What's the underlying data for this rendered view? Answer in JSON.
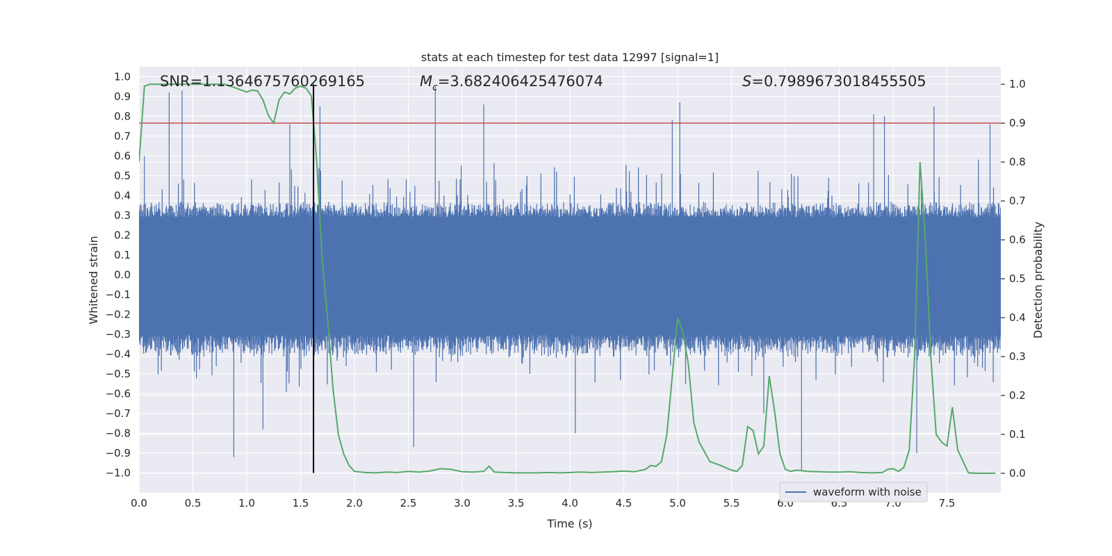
{
  "chart_data": {
    "type": "line",
    "title": "stats at each timestep for test data 12997 [signal=1]",
    "xlabel": "Time (s)",
    "ylabel": "Whitened strain",
    "y2label": "Detection probability",
    "xlim": [
      0.0,
      8.0
    ],
    "ylim": [
      -1.1,
      1.05
    ],
    "y2lim": [
      -0.05,
      1.045
    ],
    "xticks": [
      0.0,
      0.5,
      1.0,
      1.5,
      2.0,
      2.5,
      3.0,
      3.5,
      4.0,
      4.5,
      5.0,
      5.5,
      6.0,
      6.5,
      7.0,
      7.5
    ],
    "xtick_labels": [
      "0.0",
      "0.5",
      "1.0",
      "1.5",
      "2.0",
      "2.5",
      "3.0",
      "3.5",
      "4.0",
      "4.5",
      "5.0",
      "5.5",
      "6.0",
      "6.5",
      "7.0",
      "7.5"
    ],
    "yticks": [
      1.0,
      0.9,
      0.8,
      0.7,
      0.6,
      0.5,
      0.4,
      0.3,
      0.2,
      0.1,
      0.0,
      -0.1,
      -0.2,
      -0.3,
      -0.4,
      -0.5,
      -0.6,
      -0.7,
      -0.8,
      -0.9,
      -1.0
    ],
    "ytick_labels": [
      "1.0",
      "0.9",
      "0.8",
      "0.7",
      "0.6",
      "0.5",
      "0.4",
      "0.3",
      "0.2",
      "0.1",
      "0.0",
      "−0.1",
      "−0.2",
      "−0.3",
      "−0.4",
      "−0.5",
      "−0.6",
      "−0.7",
      "−0.8",
      "−0.9",
      "−1.0"
    ],
    "y2ticks": [
      1.0,
      0.9,
      0.8,
      0.7,
      0.6,
      0.5,
      0.4,
      0.3,
      0.2,
      0.1,
      0.0
    ],
    "y2tick_labels": [
      "1.0",
      "0.9",
      "0.8",
      "0.7",
      "0.6",
      "0.5",
      "0.4",
      "0.3",
      "0.2",
      "0.1",
      "0.0"
    ],
    "annotations": {
      "snr": "SNR=1.1364675760269165",
      "mc_symbol": "M",
      "mc_sub": "c",
      "mc_value": "=3.682406425476074",
      "s_symbol": "S",
      "s_value": "=0.7989673018455505"
    },
    "threshold_y2": 0.9,
    "marker_time": 1.62,
    "legend": {
      "label": "waveform with noise",
      "location": "lower right"
    },
    "series": [
      {
        "name": "waveform with noise",
        "axis": "left",
        "color": "#4c72b0",
        "description": "dense noisy strain, roughly uniform band from -0.42 to 0.37 with spikes",
        "band_low": -0.42,
        "band_high": 0.37,
        "spikes": [
          [
            0.05,
            0.6
          ],
          [
            0.28,
            0.92
          ],
          [
            0.4,
            0.93
          ],
          [
            0.88,
            -0.92
          ],
          [
            1.15,
            -0.78
          ],
          [
            1.4,
            0.76
          ],
          [
            1.68,
            0.85
          ],
          [
            2.55,
            -0.87
          ],
          [
            2.75,
            0.95
          ],
          [
            3.2,
            0.86
          ],
          [
            4.05,
            -0.8
          ],
          [
            4.95,
            0.78
          ],
          [
            5.02,
            0.87
          ],
          [
            5.8,
            -0.7
          ],
          [
            6.15,
            -0.99
          ],
          [
            6.82,
            0.81
          ],
          [
            6.92,
            0.8
          ],
          [
            7.22,
            -0.9
          ],
          [
            7.38,
            0.85
          ],
          [
            7.9,
            0.76
          ]
        ]
      },
      {
        "name": "detection probability",
        "axis": "right",
        "color": "#55a868",
        "x": [
          0.0,
          0.05,
          0.1,
          0.2,
          0.3,
          0.4,
          0.5,
          0.6,
          0.7,
          0.8,
          0.9,
          1.0,
          1.05,
          1.1,
          1.15,
          1.2,
          1.25,
          1.3,
          1.35,
          1.4,
          1.45,
          1.5,
          1.55,
          1.6,
          1.65,
          1.7,
          1.75,
          1.8,
          1.85,
          1.9,
          1.95,
          2.0,
          2.1,
          2.2,
          2.3,
          2.4,
          2.5,
          2.6,
          2.7,
          2.8,
          2.9,
          3.0,
          3.1,
          3.2,
          3.25,
          3.3,
          3.4,
          3.5,
          3.6,
          3.7,
          3.8,
          3.9,
          4.0,
          4.1,
          4.2,
          4.3,
          4.4,
          4.5,
          4.6,
          4.7,
          4.75,
          4.8,
          4.85,
          4.9,
          4.95,
          5.0,
          5.05,
          5.1,
          5.15,
          5.2,
          5.3,
          5.4,
          5.5,
          5.55,
          5.6,
          5.65,
          5.7,
          5.75,
          5.8,
          5.85,
          5.9,
          5.95,
          6.0,
          6.05,
          6.1,
          6.15,
          6.2,
          6.3,
          6.4,
          6.5,
          6.6,
          6.7,
          6.8,
          6.9,
          6.95,
          7.0,
          7.05,
          7.1,
          7.15,
          7.2,
          7.25,
          7.3,
          7.35,
          7.4,
          7.45,
          7.5,
          7.55,
          7.6,
          7.65,
          7.7,
          7.8,
          7.95
        ],
        "values": [
          0.8,
          0.995,
          1.0,
          1.0,
          1.0,
          1.0,
          1.0,
          1.0,
          1.0,
          1.0,
          0.99,
          0.98,
          0.985,
          0.983,
          0.96,
          0.92,
          0.9,
          0.96,
          0.98,
          0.975,
          0.99,
          0.995,
          0.99,
          0.97,
          0.8,
          0.55,
          0.4,
          0.22,
          0.1,
          0.05,
          0.02,
          0.005,
          0.002,
          0.001,
          0.003,
          0.002,
          0.005,
          0.003,
          0.006,
          0.012,
          0.01,
          0.004,
          0.003,
          0.005,
          0.018,
          0.003,
          0.002,
          0.001,
          0.001,
          0.001,
          0.002,
          0.001,
          0.002,
          0.003,
          0.002,
          0.003,
          0.004,
          0.006,
          0.004,
          0.01,
          0.02,
          0.018,
          0.03,
          0.1,
          0.25,
          0.4,
          0.36,
          0.28,
          0.13,
          0.08,
          0.03,
          0.02,
          0.008,
          0.005,
          0.02,
          0.12,
          0.11,
          0.05,
          0.07,
          0.25,
          0.16,
          0.05,
          0.01,
          0.005,
          0.008,
          0.007,
          0.005,
          0.004,
          0.003,
          0.003,
          0.004,
          0.002,
          0.001,
          0.002,
          0.01,
          0.012,
          0.005,
          0.015,
          0.06,
          0.3,
          0.8,
          0.6,
          0.3,
          0.1,
          0.08,
          0.07,
          0.17,
          0.06,
          0.03,
          0.001,
          0.0,
          0.0
        ]
      }
    ]
  },
  "colors": {
    "background": "#ffffff",
    "plot_bg": "#eaeaf2",
    "grid": "#ffffff",
    "strain": "#4c72b0",
    "probability": "#55a868",
    "threshold": "#c44e52",
    "marker": "#000000"
  }
}
